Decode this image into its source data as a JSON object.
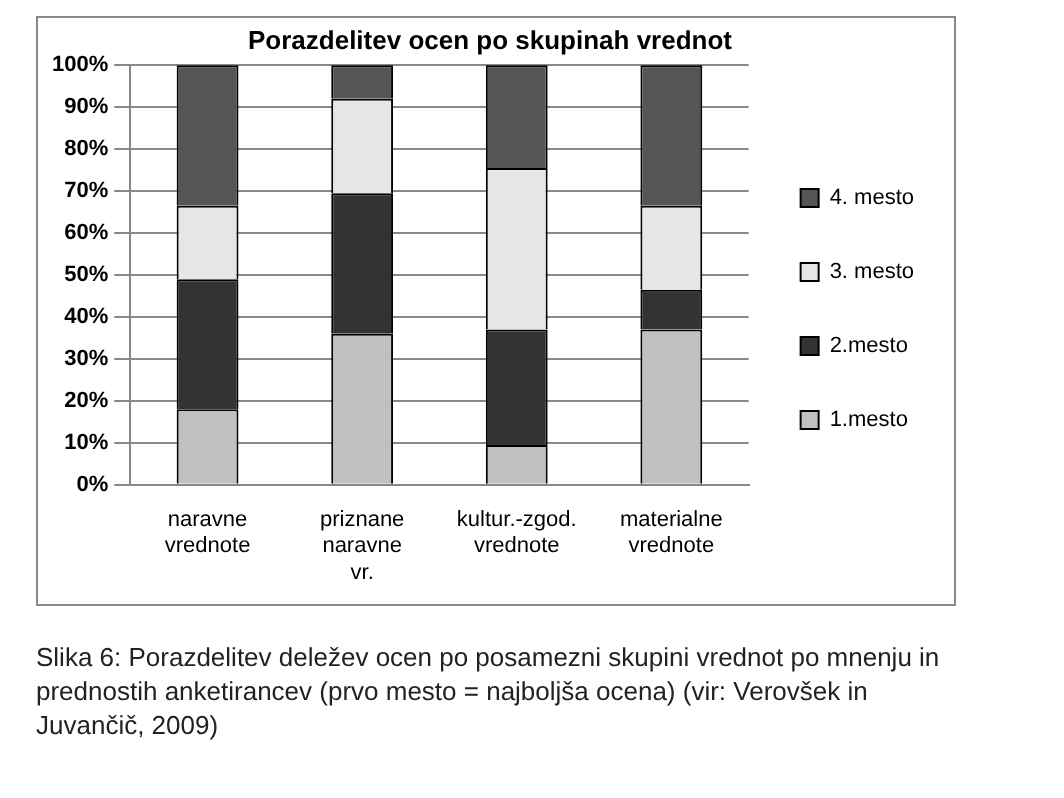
{
  "chart_data": {
    "type": "bar",
    "title": "Porazdelitev ocen po skupinah vrednot",
    "stacked": true,
    "categories": [
      "naravne vrednote",
      "priznane naravne vr.",
      "kultur.-zgod. vrednote",
      "materialne vrednote"
    ],
    "series": [
      {
        "name": "1.mesto",
        "color": "#c0c0c0",
        "values": [
          18,
          36,
          9.5,
          37
        ]
      },
      {
        "name": "2.mesto",
        "color": "#333333",
        "values": [
          31,
          33.5,
          27.5,
          9.5
        ]
      },
      {
        "name": "3. mesto",
        "color": "#e6e6e6",
        "values": [
          17.5,
          22.5,
          38.5,
          20
        ]
      },
      {
        "name": "4. mesto",
        "color": "#555555",
        "values": [
          33.5,
          8,
          24.5,
          33.5
        ]
      }
    ],
    "ylim": [
      0,
      100
    ],
    "yticks": [
      {
        "value": 0,
        "label": "0%"
      },
      {
        "value": 10,
        "label": "10%"
      },
      {
        "value": 20,
        "label": "20%"
      },
      {
        "value": 30,
        "label": "30%"
      },
      {
        "value": 40,
        "label": "40%"
      },
      {
        "value": 50,
        "label": "50%"
      },
      {
        "value": 60,
        "label": "60%"
      },
      {
        "value": 70,
        "label": "70%"
      },
      {
        "value": 80,
        "label": "80%"
      },
      {
        "value": 90,
        "label": "90%"
      },
      {
        "value": 100,
        "label": "100%"
      }
    ],
    "grid": "y",
    "legend": "right",
    "annotations": [
      "Slika 6: Porazdelitev deležev ocen po posamezni skupini vrednot po mnenju in prednostih anketirancev (prvo mesto = najboljša ocena) (vir: Verovšek in Juvančič, 2009)"
    ]
  }
}
